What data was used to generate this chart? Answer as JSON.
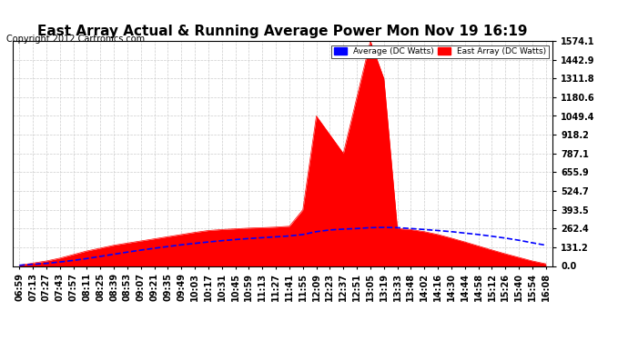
{
  "title": "East Array Actual & Running Average Power Mon Nov 19 16:19",
  "copyright": "Copyright 2012 Cartronics.com",
  "legend_avg": "Average (DC Watts)",
  "legend_east": "East Array (DC Watts)",
  "ymax": 1574.1,
  "ymin": 0.0,
  "yticks": [
    0.0,
    131.2,
    262.4,
    393.5,
    524.7,
    655.9,
    787.1,
    918.2,
    1049.4,
    1180.6,
    1311.8,
    1442.9,
    1574.1
  ],
  "xtick_labels": [
    "06:59",
    "07:13",
    "07:27",
    "07:43",
    "07:57",
    "08:11",
    "08:25",
    "08:39",
    "08:53",
    "09:07",
    "09:21",
    "09:35",
    "09:49",
    "10:03",
    "10:17",
    "10:31",
    "10:45",
    "10:59",
    "11:13",
    "11:27",
    "11:41",
    "11:55",
    "12:09",
    "12:23",
    "12:37",
    "12:51",
    "13:05",
    "13:19",
    "13:33",
    "13:48",
    "14:02",
    "14:16",
    "14:30",
    "14:44",
    "14:58",
    "15:12",
    "15:26",
    "15:40",
    "15:54",
    "16:08"
  ],
  "east_actual": [
    5,
    20,
    35,
    55,
    80,
    105,
    125,
    145,
    160,
    175,
    190,
    205,
    220,
    235,
    248,
    255,
    260,
    265,
    268,
    272,
    278,
    393,
    1049,
    918,
    787,
    1180,
    1574,
    1311,
    262,
    255,
    240,
    220,
    195,
    168,
    140,
    112,
    85,
    60,
    35,
    15
  ],
  "avg_power": [
    5,
    12,
    18,
    28,
    39,
    52,
    67,
    82,
    97,
    111,
    124,
    136,
    148,
    158,
    168,
    177,
    185,
    192,
    198,
    204,
    210,
    220,
    240,
    252,
    258,
    262,
    268,
    270,
    268,
    262,
    255,
    248,
    240,
    230,
    220,
    208,
    195,
    180,
    162,
    145
  ],
  "background_color": "#ffffff",
  "plot_bg_color": "#ffffff",
  "grid_color": "#cccccc",
  "fill_color": "#ff0000",
  "line_color": "#0000ff",
  "title_fontsize": 11,
  "axis_fontsize": 7,
  "copyright_fontsize": 7
}
